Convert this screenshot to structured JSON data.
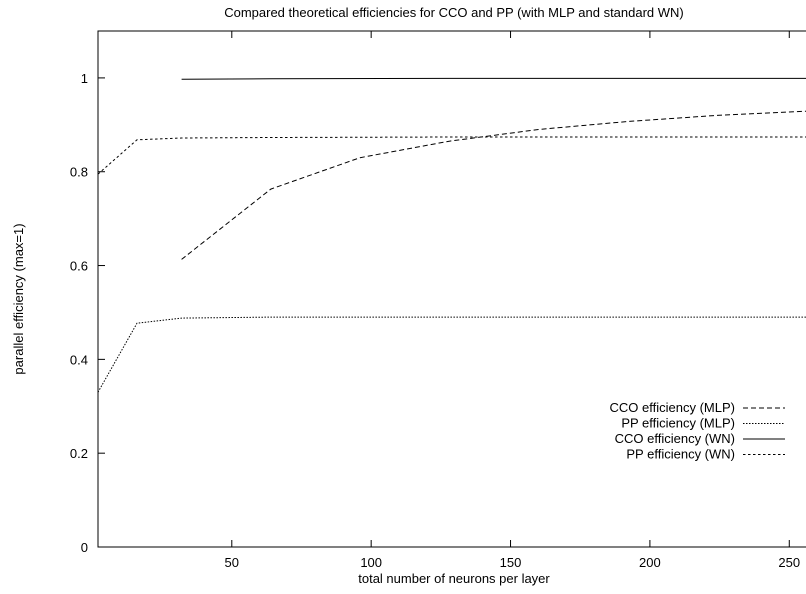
{
  "chart_data": {
    "type": "line",
    "title": "Compared theoretical efficiencies for CCO and PP (with MLP and standard WN)",
    "xlabel": "total number of neurons per layer",
    "ylabel": "parallel efficiency (max=1)",
    "xlim": [
      2,
      256
    ],
    "ylim": [
      0,
      1.1
    ],
    "xticks": [
      50,
      100,
      150,
      200,
      250
    ],
    "yticks": [
      0,
      0.2,
      0.4,
      0.6,
      0.8,
      1
    ],
    "grid": false,
    "legend_position": "bottom-right",
    "series": [
      {
        "name": "CCO efficiency (MLP)",
        "dash": "dashed",
        "x": [
          32,
          64,
          96,
          128,
          160,
          192,
          224,
          256
        ],
        "y": [
          0.613,
          0.763,
          0.83,
          0.865,
          0.89,
          0.907,
          0.92,
          0.929
        ]
      },
      {
        "name": "PP efficiency (MLP)",
        "dash": "dotted",
        "x": [
          2,
          16,
          32,
          64,
          128,
          256
        ],
        "y": [
          0.33,
          0.477,
          0.488,
          0.49,
          0.49,
          0.49
        ]
      },
      {
        "name": "CCO efficiency (WN)",
        "dash": "solid",
        "x": [
          32,
          64,
          128,
          256
        ],
        "y": [
          0.997,
          0.998,
          0.999,
          0.999
        ]
      },
      {
        "name": "PP efficiency (WN)",
        "dash": "short-dashed",
        "x": [
          2,
          16,
          32,
          64,
          128,
          256
        ],
        "y": [
          0.795,
          0.868,
          0.872,
          0.873,
          0.874,
          0.874
        ]
      }
    ]
  }
}
